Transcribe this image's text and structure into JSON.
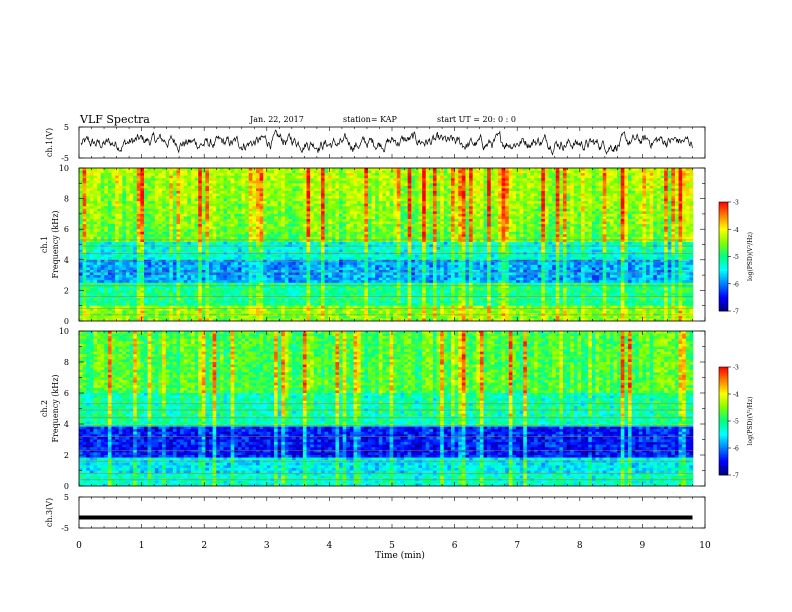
{
  "header": {
    "title": "VLF Spectra",
    "date": "Jan. 22, 2017",
    "station": "station= KAP",
    "start_time": "start  UT =  20: 0  : 0"
  },
  "colors": {
    "spectrogram_colormap": [
      "#00007f",
      "#0000ff",
      "#0080ff",
      "#00ffff",
      "#00ff80",
      "#80ff00",
      "#ffff00",
      "#ff8000",
      "#ff0000"
    ],
    "trace": "#000000"
  },
  "chart_data": [
    {
      "type": "line",
      "name": "ch1-waveform",
      "ylabel": "ch.1(V)",
      "ylim": [
        -5,
        5
      ],
      "yticks": [
        "5",
        "-5"
      ],
      "xlim": [
        0,
        10
      ]
    },
    {
      "type": "heatmap",
      "name": "ch1-spectrogram",
      "ylabel_line1": "ch.1",
      "ylabel_line2": "Frequency (kHz)",
      "ylim": [
        0,
        10
      ],
      "yticks": [
        "0",
        "2",
        "4",
        "6",
        "8",
        "10"
      ],
      "xlim": [
        0,
        10
      ],
      "colorbar": {
        "label": "log(PSD)(V²/Hz)",
        "range": [
          -7,
          -3
        ],
        "ticks": [
          "-3",
          "-4",
          "-5",
          "-6",
          "-7"
        ]
      }
    },
    {
      "type": "heatmap",
      "name": "ch2-spectrogram",
      "ylabel_line1": "ch.2",
      "ylabel_line2": "Frequency (kHz)",
      "ylim": [
        0,
        10
      ],
      "yticks": [
        "0",
        "2",
        "4",
        "6",
        "8",
        "10"
      ],
      "xlim": [
        0,
        10
      ],
      "colorbar": {
        "label": "log(PSD)(V²/Hz)",
        "range": [
          -7,
          -3
        ],
        "ticks": [
          "-3",
          "-4",
          "-5",
          "-6",
          "-7"
        ]
      }
    },
    {
      "type": "line",
      "name": "ch3-waveform",
      "ylabel": "ch.3(V)",
      "ylim": [
        -5,
        5
      ],
      "yticks": [
        "5",
        "-5"
      ],
      "x": [
        0,
        9.8
      ],
      "values": [
        -1.6,
        -1.6
      ],
      "xlabel": "Time (min)",
      "xticks": [
        "0",
        "1",
        "2",
        "3",
        "4",
        "5",
        "6",
        "7",
        "8",
        "9",
        "10"
      ],
      "xlim": [
        0,
        10
      ]
    }
  ]
}
